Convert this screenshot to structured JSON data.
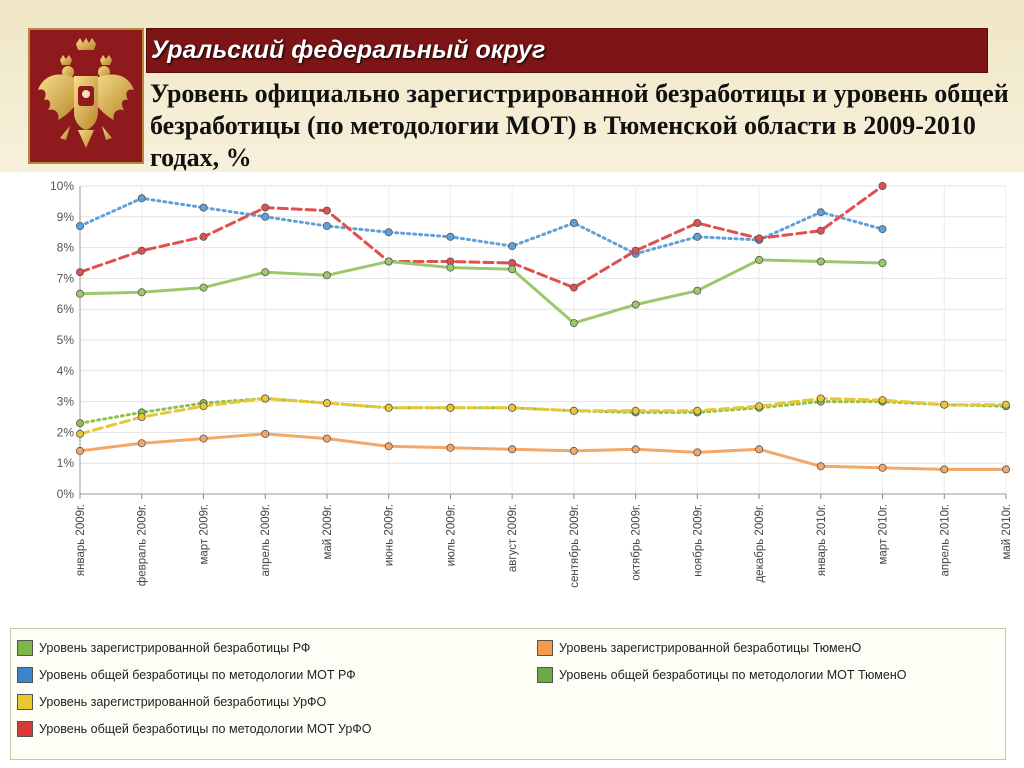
{
  "header": {
    "region": "Уральский федеральный округ",
    "title": "Уровень официально зарегистрированной безработицы и уровень общей безработицы (по методологии МОТ) в Тюменской области в 2009-2010 годах, %"
  },
  "emblem": {
    "icon": "double-headed-eagle-icon"
  },
  "chart_data": {
    "type": "line",
    "title": "",
    "xlabel": "",
    "ylabel": "",
    "ylim": [
      0,
      10
    ],
    "yticks": [
      "0%",
      "1%",
      "2%",
      "3%",
      "4%",
      "5%",
      "6%",
      "7%",
      "8%",
      "9%",
      "10%"
    ],
    "grid": true,
    "legend_position": "bottom",
    "categories": [
      "январь 2009г.",
      "февраль 2009г.",
      "март 2009г.",
      "апрель 2009г.",
      "май 2009г.",
      "июнь 2009г.",
      "июль 2009г.",
      "август 2009г.",
      "сентябрь 2009г.",
      "октябрь 2009г.",
      "ноябрь 2009г.",
      "декабрь 2009г.",
      "январь 2010г.",
      "март 2010г.",
      "апрель 2010г.",
      "май 2010г."
    ],
    "series": [
      {
        "name": "Уровень зарегистрированной безработицы РФ",
        "color": "#8fc04a",
        "dash": "dot",
        "values": [
          2.3,
          2.65,
          2.95,
          3.1,
          2.95,
          2.8,
          2.8,
          2.8,
          2.7,
          2.65,
          2.65,
          2.8,
          3.0,
          3.0,
          2.9,
          2.85
        ]
      },
      {
        "name": "Уровень общей безработицы по методологии МОТ РФ",
        "color": "#5fa0d8",
        "dash": "dot",
        "values": [
          8.7,
          9.6,
          9.3,
          9.0,
          8.7,
          8.5,
          8.35,
          8.05,
          8.8,
          7.8,
          8.35,
          8.25,
          9.15,
          8.6,
          null,
          null
        ]
      },
      {
        "name": "Уровень зарегистрированной безработицы УрФО",
        "color": "#e8c832",
        "dash": "dash",
        "values": [
          1.95,
          2.5,
          2.85,
          3.1,
          2.95,
          2.8,
          2.8,
          2.8,
          2.7,
          2.7,
          2.7,
          2.85,
          3.1,
          3.05,
          2.9,
          2.9
        ]
      },
      {
        "name": "Уровень общей безработицы по методологии МОТ УрФО",
        "color": "#e05050",
        "dash": "dash",
        "values": [
          7.2,
          7.9,
          8.35,
          9.3,
          9.2,
          7.55,
          7.55,
          7.5,
          6.7,
          7.9,
          8.8,
          8.3,
          8.55,
          10.0,
          null,
          null
        ]
      },
      {
        "name": "Уровень зарегистрированной безработицы ТюменО",
        "color": "#f4a868",
        "dash": "solid",
        "values": [
          1.4,
          1.65,
          1.8,
          1.95,
          1.8,
          1.55,
          1.5,
          1.45,
          1.4,
          1.45,
          1.35,
          1.45,
          0.9,
          0.85,
          0.8,
          0.8
        ]
      },
      {
        "name": "Уровень общей безработицы по методологии МОТ ТюменО",
        "color": "#9cc86a",
        "dash": "solid",
        "values": [
          6.5,
          6.55,
          6.7,
          7.2,
          7.1,
          7.55,
          7.35,
          7.3,
          5.55,
          6.15,
          6.6,
          7.6,
          7.55,
          7.5,
          null,
          null
        ]
      }
    ]
  },
  "legend": {
    "items": [
      {
        "label": "Уровень зарегистрированной безработицы РФ",
        "color": "#7ab648"
      },
      {
        "label": "Уровень зарегистрированной безработицы  ТюменО",
        "color": "#f49a4a"
      },
      {
        "label": "Уровень общей безработицы по методологии МОТ РФ",
        "color": "#3a86c8"
      },
      {
        "label": "Уровень общей безработицы по методологии МОТ  ТюменО",
        "color": "#6aa848"
      },
      {
        "label": "Уровень зарегистрированной безработицы УрФО",
        "color": "#e8c832"
      },
      {
        "label": "Уровень общей безработицы по методологии МОТ УрФО",
        "color": "#d83a3a"
      }
    ]
  }
}
